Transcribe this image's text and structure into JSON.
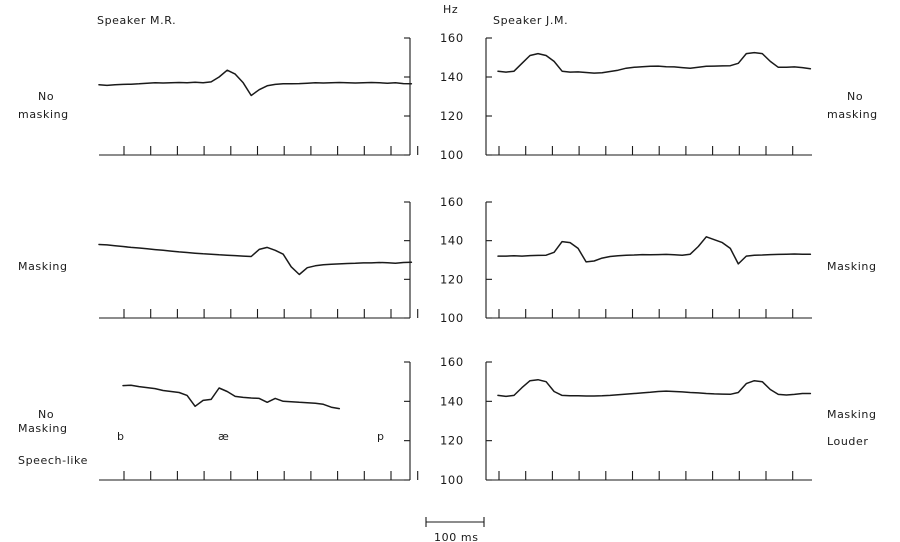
{
  "chart_data": {
    "type": "line",
    "y_unit_label": "Hz",
    "yticks": [
      100,
      120,
      140,
      160
    ],
    "ylim": [
      100,
      160
    ],
    "time_ticks_per_panel": 12,
    "scale_bar_label": "100 ms",
    "columns": [
      {
        "id": "left",
        "title": "Speaker M.R."
      },
      {
        "id": "right",
        "title": "Speaker J.M."
      }
    ],
    "panels": [
      {
        "id": "mr-no-masking",
        "column": "left",
        "row": 0,
        "condition": [
          "No",
          "masking"
        ],
        "x": [
          0,
          0.3,
          0.6,
          0.9,
          1.2,
          1.5,
          1.8,
          2.1,
          2.4,
          2.7,
          3.0,
          3.3,
          3.6,
          3.9,
          4.2,
          4.5,
          4.8,
          5.1,
          5.4,
          5.7,
          6.0,
          6.3,
          6.6,
          6.9,
          7.2,
          7.5,
          7.8,
          8.1,
          8.4,
          8.7,
          9.0,
          9.3,
          9.6,
          9.9,
          10.2,
          10.5,
          10.8,
          11.1,
          11.4,
          11.7
        ],
        "y": [
          136,
          135.7,
          136,
          136.2,
          136.3,
          136.5,
          136.8,
          137,
          136.9,
          137,
          137.2,
          137.1,
          137.3,
          137,
          137.5,
          140,
          143.5,
          141.5,
          137,
          130.5,
          133.5,
          135.5,
          136.2,
          136.5,
          136.5,
          136.6,
          136.8,
          137,
          136.9,
          137,
          137.2,
          137,
          136.9,
          137,
          137.2,
          137,
          136.8,
          137,
          136.6,
          136.5
        ]
      },
      {
        "id": "jm-no-masking",
        "column": "right",
        "row": 0,
        "condition": [
          "No",
          "masking"
        ],
        "x": [
          0,
          0.3,
          0.6,
          0.9,
          1.2,
          1.5,
          1.8,
          2.1,
          2.4,
          2.7,
          3.0,
          3.3,
          3.6,
          3.9,
          4.2,
          4.5,
          4.8,
          5.1,
          5.4,
          5.7,
          6.0,
          6.3,
          6.6,
          6.9,
          7.2,
          7.5,
          7.8,
          8.1,
          8.4,
          8.7,
          9.0,
          9.3,
          9.6,
          9.9,
          10.2,
          10.5,
          10.8,
          11.1,
          11.4,
          11.7
        ],
        "y": [
          143,
          142.5,
          143,
          147,
          151,
          152,
          151,
          148,
          143,
          142.5,
          142.6,
          142.3,
          142,
          142.2,
          142.8,
          143.5,
          144.5,
          145,
          145.3,
          145.5,
          145.6,
          145.3,
          145.2,
          144.8,
          144.5,
          145,
          145.5,
          145.6,
          145.7,
          145.8,
          147,
          152,
          152.5,
          152,
          148,
          145,
          145,
          145.2,
          144.8,
          144.2
        ]
      },
      {
        "id": "mr-masking",
        "column": "left",
        "row": 1,
        "condition": [
          "Masking"
        ],
        "x": [
          0,
          0.3,
          0.6,
          0.9,
          1.2,
          1.5,
          1.8,
          2.1,
          2.4,
          2.7,
          3.0,
          3.3,
          3.6,
          3.9,
          4.2,
          4.5,
          4.8,
          5.1,
          5.4,
          5.7,
          6.0,
          6.3,
          6.6,
          6.9,
          7.2,
          7.5,
          7.8,
          8.1,
          8.4,
          8.7,
          9.0,
          9.3,
          9.6,
          9.9,
          10.2,
          10.5,
          10.8,
          11.1,
          11.4,
          11.7
        ],
        "y": [
          138,
          137.8,
          137.4,
          137,
          136.5,
          136.2,
          135.8,
          135.4,
          135,
          134.6,
          134.2,
          133.9,
          133.5,
          133.2,
          133,
          132.7,
          132.5,
          132.3,
          132,
          131.8,
          135.5,
          136.5,
          135,
          133,
          126.5,
          122.5,
          126,
          127,
          127.5,
          127.8,
          128,
          128.2,
          128.3,
          128.5,
          128.5,
          128.7,
          128.6,
          128.3,
          128.7,
          128.8
        ]
      },
      {
        "id": "jm-masking",
        "column": "right",
        "row": 1,
        "condition": [
          "Masking"
        ],
        "x": [
          0,
          0.3,
          0.6,
          0.9,
          1.2,
          1.5,
          1.8,
          2.1,
          2.4,
          2.7,
          3.0,
          3.3,
          3.6,
          3.9,
          4.2,
          4.5,
          4.8,
          5.1,
          5.4,
          5.7,
          6.0,
          6.3,
          6.6,
          6.9,
          7.2,
          7.5,
          7.8,
          8.1,
          8.4,
          8.7,
          9.0,
          9.3,
          9.6,
          9.9,
          10.2,
          10.5,
          10.8,
          11.1,
          11.4,
          11.7
        ],
        "y": [
          132,
          132,
          132.2,
          132,
          132.3,
          132.4,
          132.5,
          134,
          139.5,
          139,
          136,
          129,
          129.5,
          131,
          131.8,
          132.2,
          132.5,
          132.6,
          132.8,
          132.7,
          132.8,
          132.9,
          132.7,
          132.5,
          133,
          137,
          142,
          140.5,
          139,
          136,
          128,
          132,
          132.5,
          132.6,
          132.8,
          132.9,
          133,
          133.1,
          133,
          133
        ]
      },
      {
        "id": "mr-speech-like",
        "column": "left",
        "row": 2,
        "condition": [
          "No",
          "Masking"
        ],
        "condition_extra": "Speech-like",
        "phonemes": [
          "b",
          "æ",
          "p"
        ],
        "x": [
          0.9,
          1.2,
          1.5,
          1.8,
          2.1,
          2.4,
          2.7,
          3.0,
          3.3,
          3.6,
          3.9,
          4.2,
          4.5,
          4.8,
          5.1,
          5.4,
          5.7,
          6.0,
          6.3,
          6.6,
          6.9,
          7.2,
          7.5,
          7.8,
          8.1,
          8.4,
          8.7,
          9.0
        ],
        "y": [
          148,
          148.2,
          147.5,
          147,
          146.5,
          145.5,
          145,
          144.5,
          143,
          137.5,
          140.5,
          141,
          146.8,
          145,
          142.5,
          142,
          141.7,
          141.5,
          139.5,
          141.5,
          140,
          139.8,
          139.5,
          139.3,
          139,
          138.5,
          137,
          136.3
        ]
      },
      {
        "id": "jm-masking-louder",
        "column": "right",
        "row": 2,
        "condition": [
          "Masking",
          "Louder"
        ],
        "x": [
          0,
          0.3,
          0.6,
          0.9,
          1.2,
          1.5,
          1.8,
          2.1,
          2.4,
          2.7,
          3.0,
          3.3,
          3.6,
          3.9,
          4.2,
          4.5,
          4.8,
          5.1,
          5.4,
          5.7,
          6.0,
          6.3,
          6.6,
          6.9,
          7.2,
          7.5,
          7.8,
          8.1,
          8.4,
          8.7,
          9.0,
          9.3,
          9.6,
          9.9,
          10.2,
          10.5,
          10.8,
          11.1,
          11.4,
          11.7
        ],
        "y": [
          143,
          142.5,
          143,
          147,
          150.5,
          151,
          150,
          145,
          143,
          142.8,
          142.8,
          142.7,
          142.7,
          142.8,
          143,
          143.3,
          143.7,
          144,
          144.3,
          144.6,
          145,
          145.2,
          145,
          144.8,
          144.5,
          144.3,
          144,
          143.8,
          143.7,
          143.6,
          144.5,
          149,
          150.5,
          150,
          146,
          143.5,
          143.2,
          143.5,
          144,
          144
        ]
      }
    ]
  }
}
